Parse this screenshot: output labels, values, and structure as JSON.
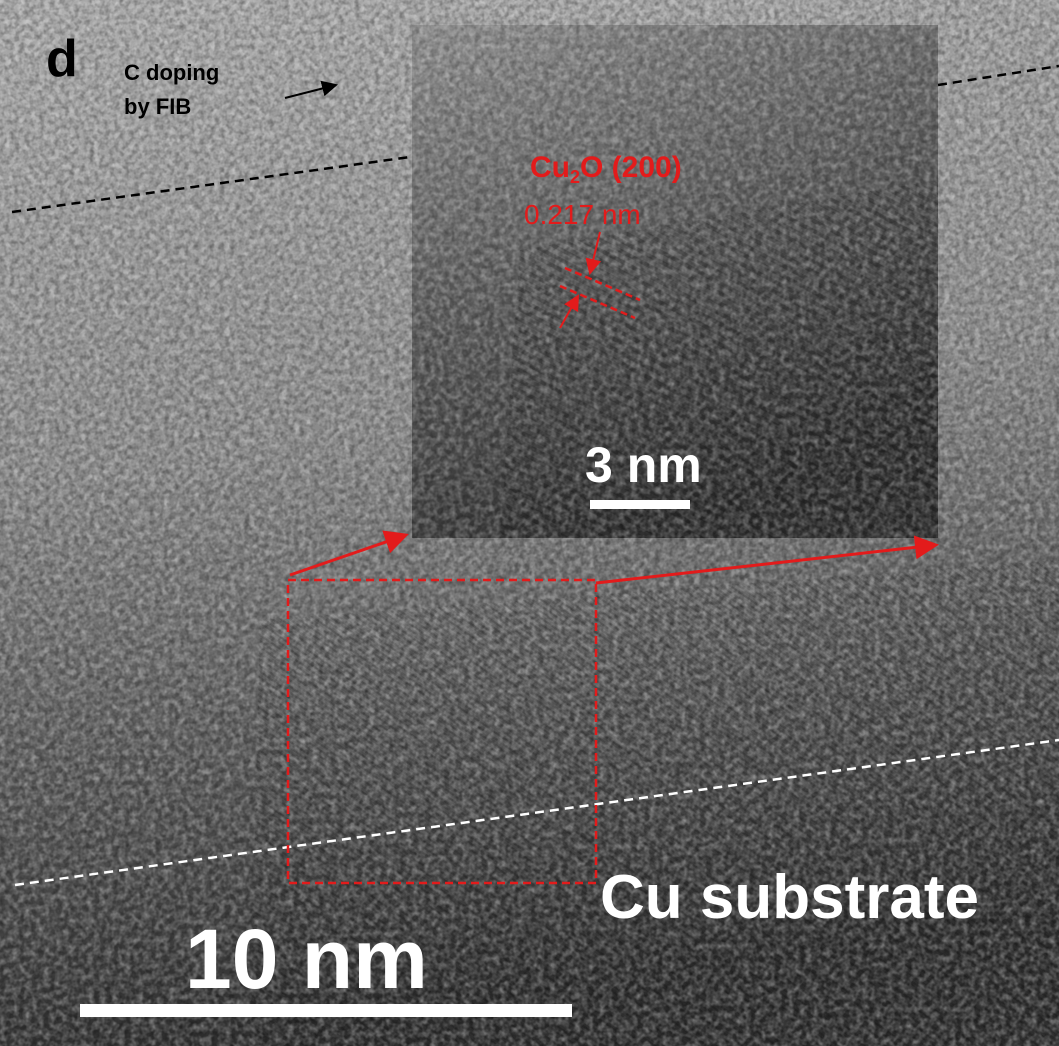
{
  "panel_label": "d",
  "annotation": {
    "line1": "C doping",
    "line2": "by FIB"
  },
  "inset": {
    "phase": {
      "main": "Cu",
      "sub": "2",
      "rest": "O (200)"
    },
    "spacing": "0.217 nm",
    "scale_bar": "3 nm"
  },
  "region_label": "Cu substrate",
  "scale_bar": "10 nm"
}
